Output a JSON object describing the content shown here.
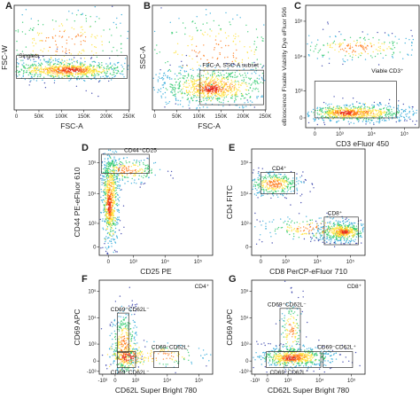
{
  "chart_data": [
    {
      "type": "scatter",
      "panel": "A",
      "xlabel": "FSC-A",
      "ylabel": "FSC-W",
      "x_ticks": [
        "0",
        "50K",
        "100K",
        "150K",
        "200K",
        "250K"
      ],
      "y_ticks": [],
      "gates": [
        {
          "label": "Singlets"
        }
      ],
      "density_colors": [
        "#2b36a5",
        "#2aa7d8",
        "#2ec96b",
        "#ffe23a",
        "#ff7a1a",
        "#e4231f"
      ]
    },
    {
      "type": "scatter",
      "panel": "B",
      "xlabel": "FSC-A",
      "ylabel": "SSC-A",
      "x_ticks": [
        "0",
        "50K",
        "100K",
        "150K",
        "200K",
        "250K"
      ],
      "y_ticks": [],
      "gates": [
        {
          "label": "FSC-A, SSC-A subset"
        }
      ]
    },
    {
      "type": "scatter",
      "panel": "C",
      "xlabel": "CD3 eFluor 450",
      "ylabel": "eBioscience Fixable Viability Dye eFluor 506",
      "x_ticks": [
        "0",
        "10³",
        "10⁴",
        "10⁵"
      ],
      "y_ticks": [
        "0",
        "10³",
        "10⁴",
        "10⁵"
      ],
      "gates": [
        {
          "label": "Viable CD3⁺"
        }
      ]
    },
    {
      "type": "scatter",
      "panel": "D",
      "xlabel": "CD25 PE",
      "ylabel": "CD44 PE-eFluor 610",
      "x_ticks": [
        "0",
        "10³",
        "10⁴",
        "10⁵"
      ],
      "y_ticks": [
        "0",
        "10³",
        "10⁴",
        "10⁵"
      ],
      "gates": [
        {
          "label": "CD44⁺CD25⁻"
        }
      ]
    },
    {
      "type": "scatter",
      "panel": "E",
      "xlabel": "CD8 PerCP-eFluor 710",
      "ylabel": "CD4 FITC",
      "x_ticks": [
        "0",
        "10³",
        "10⁴",
        "10⁵"
      ],
      "y_ticks": [
        "0",
        "10³",
        "10⁴",
        "10⁵"
      ],
      "gates": [
        {
          "label": "CD4⁺"
        },
        {
          "label": "CD8⁺"
        }
      ]
    },
    {
      "type": "scatter",
      "panel": "F",
      "title": "CD4⁺",
      "xlabel": "CD62L Super Bright 780",
      "ylabel": "CD69 APC",
      "x_ticks": [
        "-10³",
        "0",
        "10³",
        "10⁴",
        "10⁵"
      ],
      "y_ticks": [
        "-10³",
        "0",
        "10³",
        "10⁴",
        "10⁵"
      ],
      "gates": [
        {
          "label": "CD69⁺CD62L⁻"
        },
        {
          "label": "CD69⁻CD62L⁻"
        },
        {
          "label": "CD69⁻CD62L⁺"
        }
      ]
    },
    {
      "type": "scatter",
      "panel": "G",
      "title": "CD8⁺",
      "xlabel": "CD62L Super Bright 780",
      "ylabel": "CD69 APC",
      "x_ticks": [
        "-10³",
        "0",
        "10³",
        "10⁴",
        "10⁵"
      ],
      "y_ticks": [
        "-10³",
        "0",
        "10³",
        "10⁴",
        "10⁵"
      ],
      "gates": [
        {
          "label": "CD69⁺CD62L⁻"
        },
        {
          "label": "CD69⁻CD62L⁻"
        },
        {
          "label": "CD69⁻CD62L⁺"
        }
      ]
    }
  ]
}
